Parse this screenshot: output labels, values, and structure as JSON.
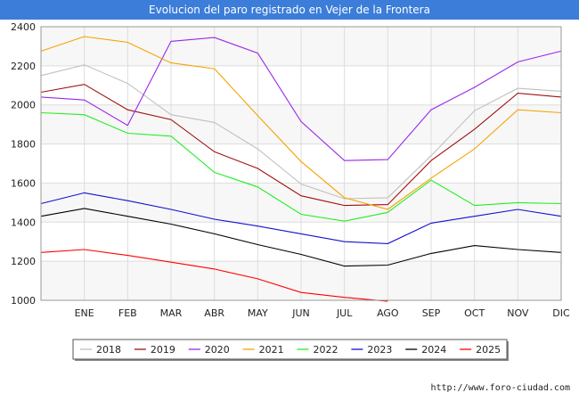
{
  "title": "Evolucion del paro registrado en Vejer de la Frontera",
  "source": "http://www.foro-ciudad.com",
  "chart_data": {
    "type": "line",
    "title": "Evolucion del paro registrado en Vejer de la Frontera",
    "categories": [
      "",
      "ENE",
      "FEB",
      "MAR",
      "ABR",
      "MAY",
      "JUN",
      "JUL",
      "AGO",
      "SEP",
      "OCT",
      "NOV",
      "DIC"
    ],
    "ylim": [
      1000,
      2400
    ],
    "yticks": [
      1000,
      1200,
      1400,
      1600,
      1800,
      2000,
      2200,
      2400
    ],
    "grid": true,
    "legend_position": "bottom",
    "series": [
      {
        "name": "2018",
        "color": "#c0c0c0",
        "values": [
          2150,
          2205,
          2110,
          1950,
          1910,
          1775,
          1595,
          1520,
          1525,
          1740,
          1970,
          2085,
          2070
        ]
      },
      {
        "name": "2019",
        "color": "#a01010",
        "values": [
          2065,
          2105,
          1975,
          1925,
          1760,
          1675,
          1535,
          1485,
          1490,
          1715,
          1875,
          2060,
          2040
        ]
      },
      {
        "name": "2020",
        "color": "#9b27e8",
        "values": [
          2040,
          2025,
          1895,
          2325,
          2345,
          2265,
          1915,
          1715,
          1720,
          1975,
          2090,
          2220,
          2275
        ]
      },
      {
        "name": "2021",
        "color": "#f5a300",
        "values": [
          2275,
          2350,
          2320,
          2215,
          2185,
          1945,
          1710,
          1525,
          1465,
          1625,
          1775,
          1975,
          1960
        ]
      },
      {
        "name": "2022",
        "color": "#22ee22",
        "values": [
          1960,
          1950,
          1855,
          1840,
          1655,
          1580,
          1440,
          1405,
          1450,
          1615,
          1485,
          1500,
          1495
        ]
      },
      {
        "name": "2023",
        "color": "#1010d0",
        "values": [
          1495,
          1550,
          1510,
          1465,
          1415,
          1380,
          1340,
          1300,
          1290,
          1395,
          1430,
          1465,
          1430
        ]
      },
      {
        "name": "2024",
        "color": "#000000",
        "values": [
          1430,
          1470,
          1430,
          1390,
          1340,
          1285,
          1235,
          1175,
          1180,
          1240,
          1280,
          1260,
          1245
        ]
      },
      {
        "name": "2025",
        "color": "#ff0000",
        "values": [
          1245,
          1260,
          1230,
          1195,
          1160,
          1110,
          1040,
          1015,
          995,
          null,
          null,
          null,
          null
        ]
      }
    ]
  }
}
